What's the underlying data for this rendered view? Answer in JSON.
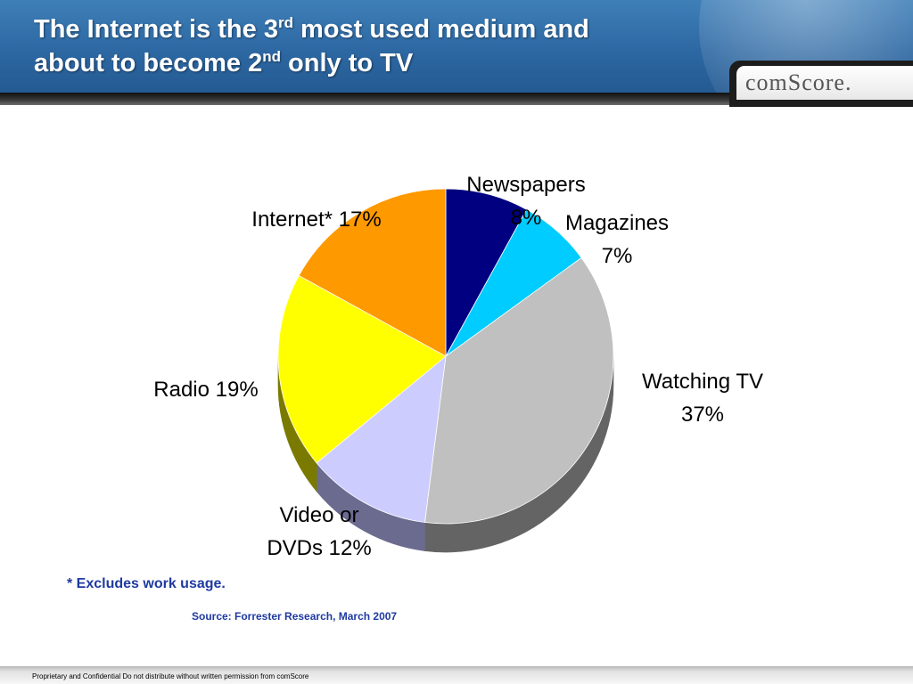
{
  "header": {
    "title_line1_pre": "The Internet is the 3",
    "title_line1_sup": "rd",
    "title_line1_post": " most used medium and",
    "title_line2_pre": "about to become 2",
    "title_line2_sup": "nd",
    "title_line2_post": "  only to TV",
    "logo_text": "comScore."
  },
  "chart_data": {
    "type": "pie",
    "title": "",
    "slices": [
      {
        "label_lines": [
          "Newspapers",
          "8%"
        ],
        "value": 8,
        "color": "#000080",
        "side_color": "#00004d"
      },
      {
        "label_lines": [
          "Magazines",
          "7%"
        ],
        "value": 7,
        "color": "#00ccff",
        "side_color": "#0088aa"
      },
      {
        "label_lines": [
          "Watching TV",
          "37%"
        ],
        "value": 37,
        "color": "#c0c0c0",
        "side_color": "#646464"
      },
      {
        "label_lines": [
          "Video or",
          "DVDs 12%"
        ],
        "value": 12,
        "color": "#ccccff",
        "side_color": "#6b6b90"
      },
      {
        "label_lines": [
          "Radio 19%"
        ],
        "value": 19,
        "color": "#ffff00",
        "side_color": "#7a7a00"
      },
      {
        "label_lines": [
          "Internet* 17%"
        ],
        "value": 17,
        "color": "#ff9900",
        "side_color": "#a35f00"
      }
    ]
  },
  "footnote": "* Excludes work usage.",
  "source": "Source: Forrester Research, March 2007",
  "footer": "Proprietary and Confidential Do not distribute without written permission from comScore"
}
